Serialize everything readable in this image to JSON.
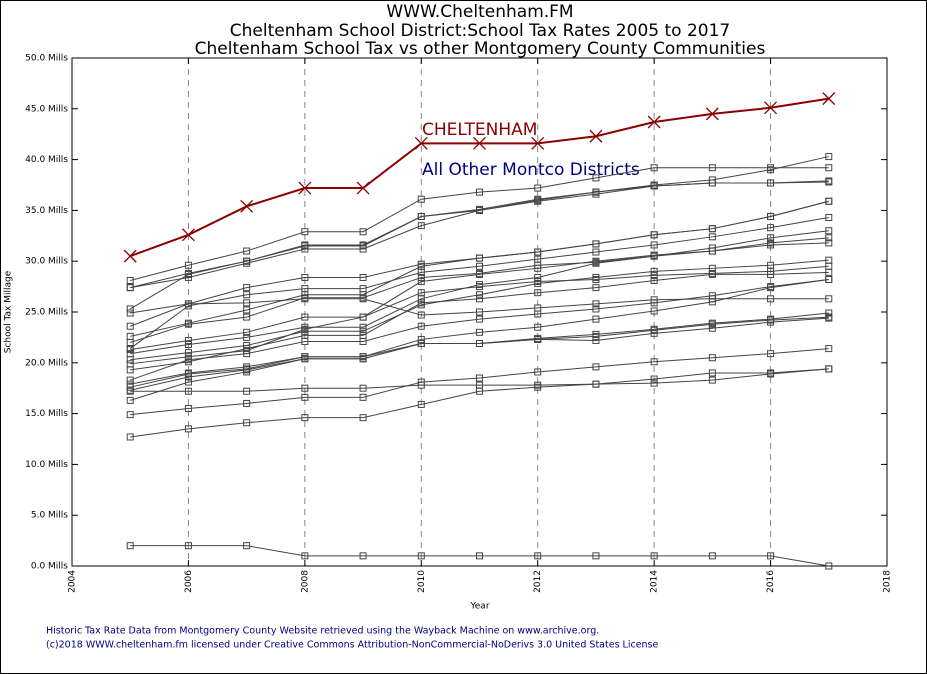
{
  "chart_data": {
    "type": "line",
    "title": [
      "WWW.Cheltenham.FM",
      "Cheltenham School District:School Tax Rates 2005 to 2017",
      "Cheltenham School Tax vs other Montgomery County Communities"
    ],
    "xlabel": "Year",
    "ylabel": "School Tax Millage",
    "annotations": [
      {
        "text": "CHELTENHAM",
        "color": "#8b0000"
      },
      {
        "text": "All Other Montco Districts",
        "color": "#00007f"
      }
    ],
    "footer": [
      "Historic Tax Rate Data from Montgomery County Website retrieved using the Wayback Machine on www.archive.org.",
      "(c)2018 WWW.cheltenham.fm licensed under Creative Commons Attribution-NonCommercial-NoDerivs 3.0 United States License"
    ],
    "x": [
      2005,
      2006,
      2007,
      2008,
      2009,
      2010,
      2011,
      2012,
      2013,
      2014,
      2015,
      2016,
      2017
    ],
    "xlim": [
      2004,
      2018
    ],
    "xticks": [
      2004,
      2006,
      2008,
      2010,
      2012,
      2014,
      2016,
      2018
    ],
    "ylim": [
      0,
      50
    ],
    "yticks": [
      {
        "value": 0,
        "label": "0.0 Mills"
      },
      {
        "value": 5,
        "label": "5.0 Mills"
      },
      {
        "value": 10,
        "label": "10.0 Mills"
      },
      {
        "value": 15,
        "label": "15.0 Mills"
      },
      {
        "value": 20,
        "label": "20.0 Mills"
      },
      {
        "value": 25,
        "label": "25.0 Mills"
      },
      {
        "value": 30,
        "label": "30.0 Mills"
      },
      {
        "value": 35,
        "label": "35.0 Mills"
      },
      {
        "value": 40,
        "label": "40.0 Mills"
      },
      {
        "value": 45,
        "label": "45.0 Mills"
      },
      {
        "value": 50,
        "label": "50.0 Mills"
      }
    ],
    "grid": "x",
    "series": [
      {
        "color": "#8b0000",
        "marker": "x",
        "values": [
          30.5,
          32.6,
          35.4,
          37.2,
          37.2,
          41.6,
          41.6,
          41.6,
          42.3,
          43.7,
          44.5,
          45.1,
          46.0
        ]
      },
      {
        "color": "#444444",
        "marker": "square",
        "values": [
          28.1,
          29.6,
          31.0,
          32.9,
          32.9,
          36.1,
          36.8,
          37.2,
          38.2,
          39.2,
          39.2,
          39.2,
          39.2
        ]
      },
      {
        "color": "#444444",
        "marker": "square",
        "values": [
          27.4,
          28.8,
          30.0,
          31.6,
          31.6,
          34.4,
          35.1,
          36.1,
          36.8,
          37.5,
          38.0,
          39.0,
          40.3
        ]
      },
      {
        "color": "#444444",
        "marker": "square",
        "values": [
          27.4,
          28.4,
          29.8,
          31.2,
          31.2,
          33.5,
          35.0,
          35.9,
          36.6,
          37.4,
          37.7,
          37.7,
          37.9
        ]
      },
      {
        "color": "#444444",
        "marker": "square",
        "values": [
          25.3,
          28.7,
          30.0,
          31.5,
          31.5,
          34.4,
          35.0,
          36.0,
          36.8,
          37.4,
          37.7,
          37.7,
          37.8
        ]
      },
      {
        "color": "#444444",
        "marker": "square",
        "values": [
          24.9,
          25.8,
          27.4,
          28.4,
          28.4,
          29.7,
          30.3,
          30.9,
          31.7,
          32.6,
          33.2,
          34.4,
          35.9
        ]
      },
      {
        "color": "#444444",
        "marker": "square",
        "values": [
          22.6,
          23.9,
          25.2,
          26.7,
          26.7,
          29.5,
          30.3,
          30.9,
          31.7,
          32.6,
          33.2,
          34.4,
          35.9
        ]
      },
      {
        "color": "#444444",
        "marker": "square",
        "values": [
          21.4,
          25.6,
          26.7,
          27.3,
          27.3,
          28.9,
          29.5,
          30.2,
          30.9,
          31.6,
          32.4,
          33.3,
          34.3
        ]
      },
      {
        "color": "#444444",
        "marker": "square",
        "values": [
          22.0,
          23.8,
          24.5,
          26.4,
          26.4,
          28.4,
          28.8,
          29.6,
          29.9,
          30.5,
          31.3,
          32.3,
          33.0
        ]
      },
      {
        "color": "#444444",
        "marker": "square",
        "values": [
          21.3,
          22.2,
          23.0,
          24.5,
          24.5,
          28.0,
          28.7,
          29.3,
          30.0,
          30.6,
          31.0,
          31.8,
          32.3
        ]
      },
      {
        "color": "#444444",
        "marker": "square",
        "values": [
          20.9,
          21.8,
          22.5,
          23.5,
          23.5,
          26.3,
          27.7,
          28.4,
          29.8,
          30.5,
          31.0,
          31.6,
          31.8
        ]
      },
      {
        "color": "#444444",
        "marker": "square",
        "values": [
          20.3,
          21.0,
          21.7,
          23.1,
          23.1,
          25.7,
          26.7,
          27.8,
          28.4,
          29.0,
          29.3,
          29.6,
          30.1
        ]
      },
      {
        "color": "#444444",
        "marker": "square",
        "values": [
          19.9,
          20.6,
          21.2,
          23.3,
          24.5,
          26.9,
          27.5,
          28.0,
          28.2,
          28.6,
          28.8,
          29.0,
          29.5
        ]
      },
      {
        "color": "#444444",
        "marker": "square",
        "values": [
          19.3,
          20.1,
          21.4,
          22.7,
          22.7,
          25.9,
          26.3,
          26.9,
          27.4,
          28.1,
          28.7,
          28.7,
          28.9
        ]
      },
      {
        "color": "#444444",
        "marker": "square",
        "values": [
          18.3,
          20.3,
          20.9,
          22.1,
          22.1,
          23.6,
          24.3,
          24.8,
          25.3,
          25.9,
          26.6,
          27.5,
          28.2
        ]
      },
      {
        "color": "#444444",
        "marker": "square",
        "values": [
          23.6,
          25.8,
          25.9,
          26.3,
          26.3,
          24.7,
          25.0,
          25.4,
          25.8,
          26.2,
          26.3,
          26.3,
          26.3
        ]
      },
      {
        "color": "#444444",
        "marker": "square",
        "values": [
          17.9,
          19.0,
          19.6,
          20.6,
          20.6,
          22.3,
          23.0,
          23.5,
          24.3,
          25.1,
          26.0,
          27.4,
          28.2
        ]
      },
      {
        "color": "#444444",
        "marker": "square",
        "values": [
          17.6,
          18.9,
          19.4,
          20.6,
          20.6,
          21.9,
          21.9,
          22.4,
          22.8,
          23.3,
          23.9,
          24.3,
          24.9
        ]
      },
      {
        "color": "#444444",
        "marker": "square",
        "values": [
          17.3,
          18.6,
          19.3,
          20.4,
          20.4,
          21.9,
          21.9,
          22.3,
          22.6,
          23.2,
          23.8,
          24.2,
          24.5
        ]
      },
      {
        "color": "#444444",
        "marker": "square",
        "values": [
          16.3,
          18.1,
          19.1,
          20.4,
          20.4,
          21.9,
          21.9,
          22.3,
          22.2,
          22.9,
          23.4,
          24.0,
          24.4
        ]
      },
      {
        "color": "#444444",
        "marker": "square",
        "values": [
          17.2,
          17.2,
          17.2,
          17.5,
          17.5,
          17.8,
          17.8,
          17.8,
          17.9,
          18.0,
          18.3,
          18.9,
          19.4
        ]
      },
      {
        "color": "#444444",
        "marker": "square",
        "values": [
          14.9,
          15.5,
          16.0,
          16.6,
          16.6,
          18.1,
          18.5,
          19.1,
          19.6,
          20.1,
          20.5,
          20.9,
          21.4
        ]
      },
      {
        "color": "#444444",
        "marker": "square",
        "values": [
          12.7,
          13.5,
          14.1,
          14.6,
          14.6,
          15.9,
          17.2,
          17.6,
          17.9,
          18.4,
          19.0,
          19.0,
          19.4
        ]
      },
      {
        "color": "#444444",
        "marker": "square",
        "values": [
          2,
          2,
          2,
          1,
          1,
          1,
          1,
          1,
          1,
          1,
          1,
          1,
          0
        ]
      }
    ]
  }
}
